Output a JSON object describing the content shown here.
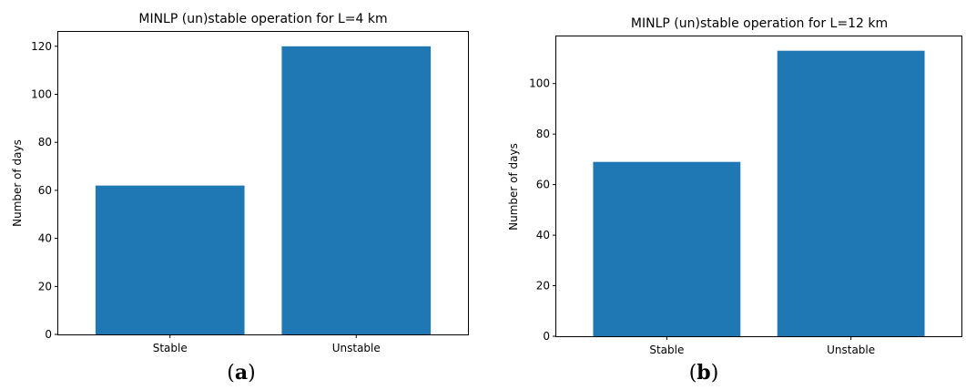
{
  "chart_data": [
    {
      "type": "bar",
      "title": "MINLP (un)stable operation for L=4 km",
      "categories": [
        "Stable",
        "Unstable"
      ],
      "values": [
        62,
        120
      ],
      "xlabel": "",
      "ylabel": "Number of days",
      "ylim": [
        0,
        126
      ],
      "yticks": [
        0,
        20,
        40,
        60,
        80,
        100,
        120
      ],
      "grid": false,
      "bar_color": "#1f77b4",
      "panel_label": "a"
    },
    {
      "type": "bar",
      "title": "MINLP (un)stable operation for L=12 km",
      "categories": [
        "Stable",
        "Unstable"
      ],
      "values": [
        69,
        113
      ],
      "xlabel": "",
      "ylabel": "Number of days",
      "ylim": [
        0,
        118.65
      ],
      "yticks": [
        0,
        20,
        40,
        60,
        80,
        100
      ],
      "grid": false,
      "bar_color": "#1f77b4",
      "panel_label": "b"
    }
  ]
}
